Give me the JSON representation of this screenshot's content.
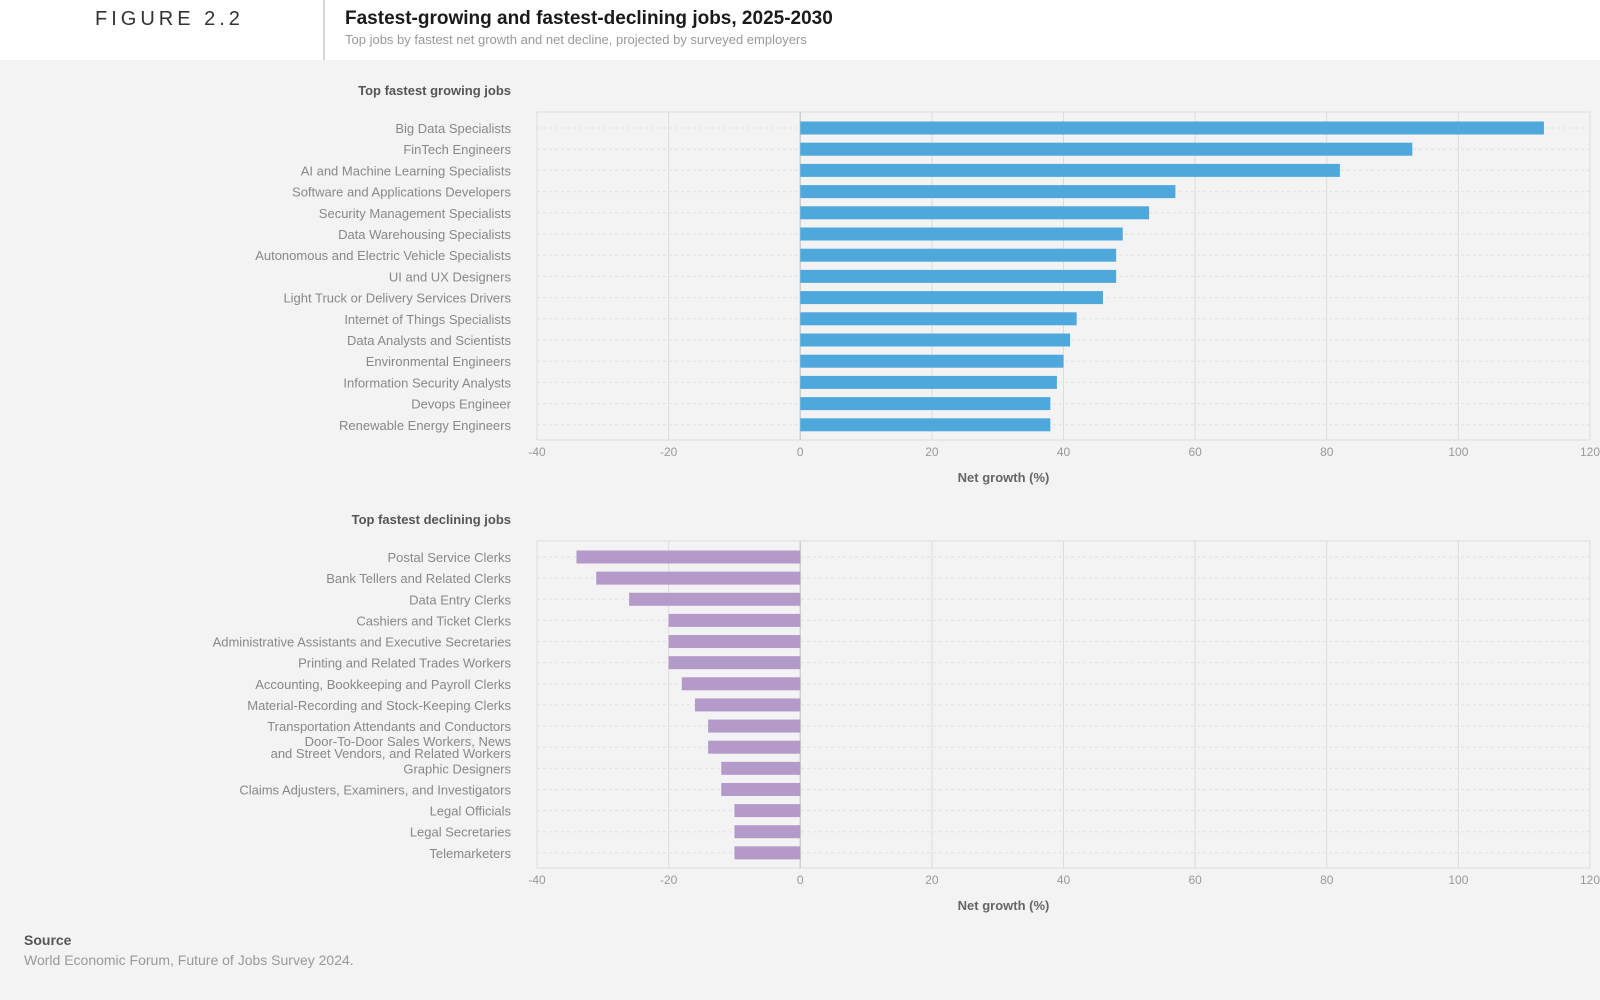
{
  "header": {
    "figure_label": "FIGURE 2.2",
    "title": "Fastest-growing and fastest-declining jobs, 2025-2030",
    "subtitle": "Top jobs by fastest net growth and net decline, projected by surveyed employers"
  },
  "source": {
    "heading": "Source",
    "text": "World Economic Forum, Future of Jobs Survey 2024."
  },
  "colors": {
    "growing_bar": "#4ea8dc",
    "declining_bar": "#b39ac8",
    "grid": "#dcdcdc"
  },
  "chart_data": [
    {
      "type": "bar",
      "orientation": "horizontal",
      "title": "Top fastest growing jobs",
      "xlabel": "Net growth (%)",
      "xlim": [
        -40,
        120
      ],
      "xticks": [
        -40,
        -20,
        0,
        20,
        40,
        60,
        80,
        100,
        120
      ],
      "grid": true,
      "categories": [
        "Big Data Specialists",
        "FinTech Engineers",
        "AI and Machine Learning Specialists",
        "Software and Applications Developers",
        "Security Management Specialists",
        "Data Warehousing Specialists",
        "Autonomous and Electric Vehicle Specialists",
        "UI and UX Designers",
        "Light Truck or Delivery Services Drivers",
        "Internet of Things Specialists",
        "Data Analysts and Scientists",
        "Environmental Engineers",
        "Information Security Analysts",
        "Devops Engineer",
        "Renewable Energy Engineers"
      ],
      "values": [
        113,
        93,
        82,
        57,
        53,
        49,
        48,
        48,
        46,
        42,
        41,
        40,
        39,
        38,
        38
      ]
    },
    {
      "type": "bar",
      "orientation": "horizontal",
      "title": "Top fastest declining jobs",
      "xlabel": "Net growth (%)",
      "xlim": [
        -40,
        120
      ],
      "xticks": [
        -40,
        -20,
        0,
        20,
        40,
        60,
        80,
        100,
        120
      ],
      "grid": true,
      "categories": [
        "Postal Service Clerks",
        "Bank Tellers and Related Clerks",
        "Data Entry Clerks",
        "Cashiers and Ticket Clerks",
        "Administrative Assistants and Executive Secretaries",
        "Printing and Related Trades Workers",
        "Accounting, Bookkeeping and Payroll Clerks",
        "Material-Recording and Stock-Keeping Clerks",
        "Transportation Attendants and Conductors",
        "Door-To-Door Sales Workers, News and Street Vendors, and Related Workers",
        "Graphic Designers",
        "Claims Adjusters, Examiners, and Investigators",
        "Legal Officials",
        "Legal Secretaries",
        "Telemarketers"
      ],
      "values": [
        -34,
        -31,
        -26,
        -20,
        -20,
        -20,
        -18,
        -16,
        -14,
        -14,
        -12,
        -12,
        -10,
        -10,
        -10
      ]
    }
  ]
}
